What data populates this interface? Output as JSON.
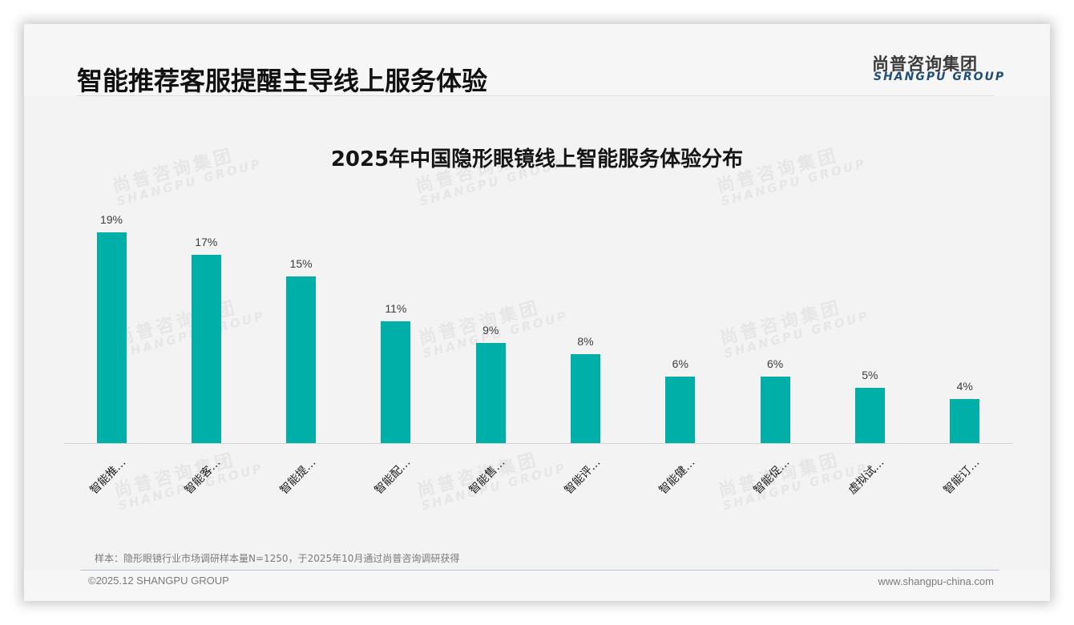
{
  "header": {
    "title": "智能推荐客服提醒主导线上服务体验",
    "logo_cn": "尚普咨询集团",
    "logo_en": "SHANGPU GROUP"
  },
  "watermark": {
    "cn": "尚普咨询集团",
    "en": "SHANGPU GROUP"
  },
  "colors": {
    "bar": "#00b0a8",
    "logo_en": "#1f4e79",
    "slide_bg": "#f3f3f3"
  },
  "chart_data": {
    "type": "bar",
    "title": "2025年中国隐形眼镜线上智能服务体验分布",
    "xlabel": "",
    "ylabel": "",
    "ylim": [
      0,
      20
    ],
    "grid": false,
    "legend": null,
    "value_suffix": "%",
    "categories": [
      "智能推…",
      "智能客…",
      "智能提…",
      "智能配…",
      "智能售…",
      "智能评…",
      "智能健…",
      "智能促…",
      "虚拟试…",
      "智能订…"
    ],
    "values": [
      19,
      17,
      15,
      11,
      9,
      8,
      6,
      6,
      5,
      4
    ],
    "value_labels": [
      "19%",
      "17%",
      "15%",
      "11%",
      "9%",
      "8%",
      "6%",
      "6%",
      "5%",
      "4%"
    ]
  },
  "footer": {
    "source_note": "样本：隐形眼镜行业市场调研样本量N=1250，于2025年10月通过尚普咨询调研获得",
    "copyright": "©2025.12 SHANGPU GROUP",
    "website": "www.shangpu-china.com"
  }
}
